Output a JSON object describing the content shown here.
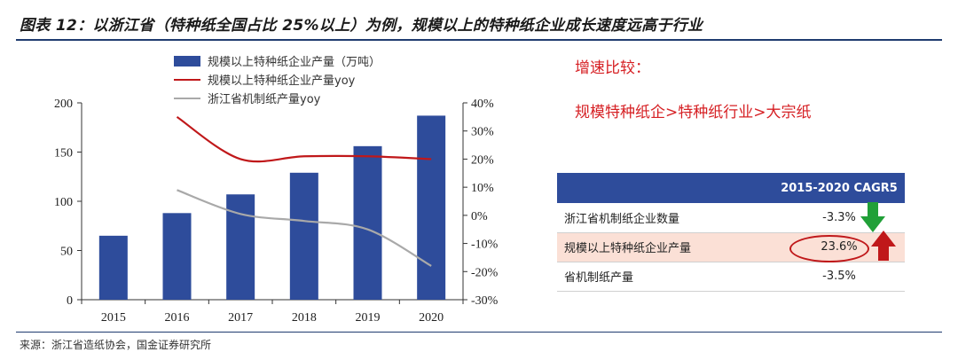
{
  "title": "图表 12：以浙江省（特种纸全国占比 25%以上）为例，规模以上的特种纸企业成长速度远高于行业",
  "legend": {
    "bar": "规模以上特种纸企业产量（万吨）",
    "red": "规模以上特种纸企业产量yoy",
    "gray": "浙江省机制纸产量yoy"
  },
  "annotation": {
    "heading": "增速比较：",
    "comparison": "规模特种纸企>特种纸行业>大宗纸"
  },
  "table": {
    "header": "2015-2020 CAGR5",
    "rows": [
      {
        "label": "浙江省机制纸企业数量",
        "value": "-3.3%"
      },
      {
        "label": "规模以上特种纸企业产量",
        "value": "23.6%"
      },
      {
        "label": "省机制纸产量",
        "value": "-3.5%"
      }
    ],
    "colors": {
      "down_arrow": "#21a038",
      "up_arrow": "#c0181a"
    }
  },
  "source": "来源：浙江省造纸协会，国金证券研究所",
  "chart_data": {
    "type": "bar",
    "categories": [
      "2015",
      "2016",
      "2017",
      "2018",
      "2019",
      "2020"
    ],
    "series": [
      {
        "name": "规模以上特种纸企业产量（万吨）",
        "type": "bar",
        "axis": "left",
        "values": [
          65,
          88,
          107,
          129,
          156,
          187
        ],
        "color": "#2e4c9b"
      },
      {
        "name": "规模以上特种纸企业产量yoy",
        "type": "line",
        "axis": "right",
        "values": [
          null,
          35,
          20,
          21,
          21,
          20
        ],
        "color": "#c0181a"
      },
      {
        "name": "浙江省机制纸产量yoy",
        "type": "line",
        "axis": "right",
        "values": [
          null,
          9,
          0.5,
          -2,
          -5,
          -18
        ],
        "color": "#a9a9a9"
      }
    ],
    "ylim_left": [
      0,
      200
    ],
    "yticks_left": [
      0,
      50,
      100,
      150,
      200
    ],
    "ylim_right": [
      -30,
      40
    ],
    "yticks_right": [
      "-30%",
      "-20%",
      "-10%",
      "0%",
      "10%",
      "20%",
      "30%",
      "40%"
    ],
    "yticks_right_values": [
      -30,
      -20,
      -10,
      0,
      10,
      20,
      30,
      40
    ],
    "grid": false,
    "legend": "top-left"
  }
}
